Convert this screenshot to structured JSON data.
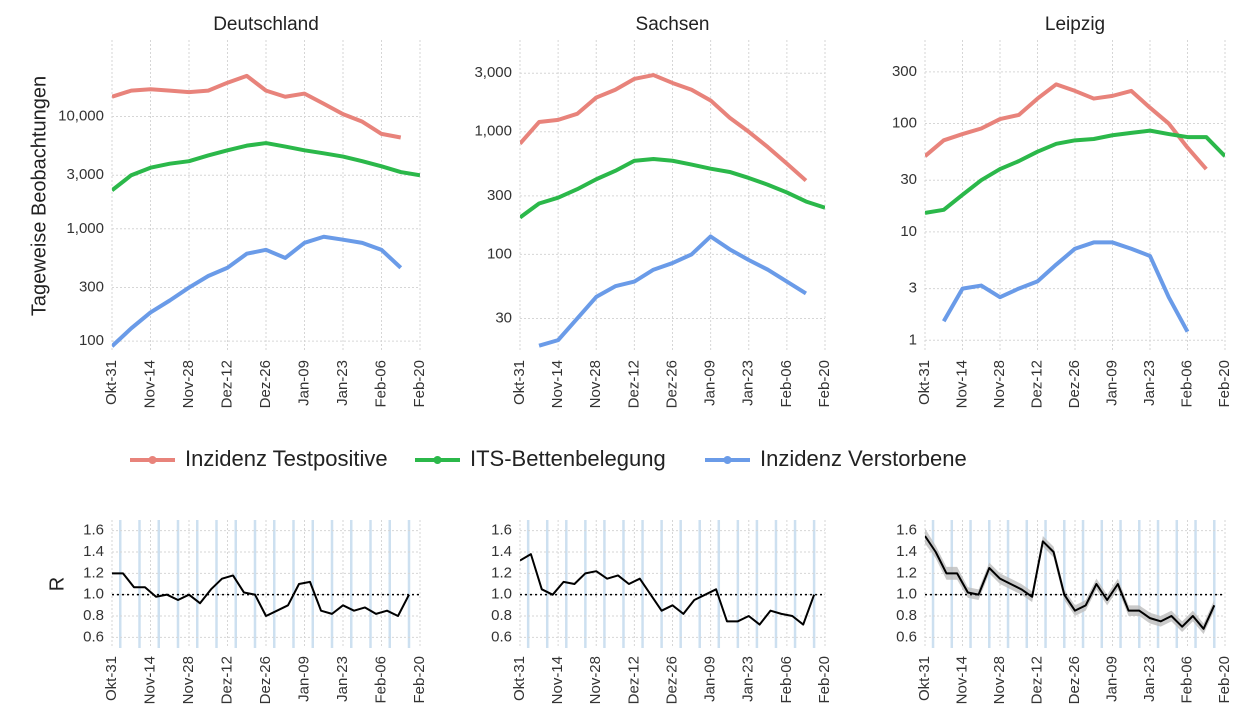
{
  "chart_data": [
    {
      "type": "line",
      "title": "Deutschland",
      "y_label": "Tageweise Beobachtungen",
      "log_y": true,
      "grid": true,
      "x": [
        0,
        7,
        14,
        21,
        28,
        35,
        42,
        49,
        56,
        63,
        70,
        77,
        84,
        91,
        98,
        105,
        112
      ],
      "xlim": [
        0,
        112
      ],
      "xticks": [
        {
          "value": 0,
          "label": "Okt-31"
        },
        {
          "value": 14,
          "label": "Nov-14"
        },
        {
          "value": 28,
          "label": "Nov-28"
        },
        {
          "value": 42,
          "label": "Dez-12"
        },
        {
          "value": 56,
          "label": "Dez-26"
        },
        {
          "value": 70,
          "label": "Jan-09"
        },
        {
          "value": 84,
          "label": "Jan-23"
        },
        {
          "value": 98,
          "label": "Feb-06"
        },
        {
          "value": 112,
          "label": "Feb-20"
        }
      ],
      "ylim": [
        80,
        48000
      ],
      "yticks": [
        100,
        300,
        {
          "value": 1000,
          "label": "1,000"
        },
        {
          "value": 3000,
          "label": "3,000"
        },
        {
          "value": 10000,
          "label": "10,000"
        }
      ],
      "series": [
        {
          "name": "Inzidenz Testpositive",
          "color": "#e8837b",
          "values": [
            15000,
            17000,
            17500,
            17000,
            16500,
            17000,
            20000,
            23000,
            17000,
            15000,
            16000,
            13000,
            10500,
            9000,
            7000,
            6500,
            null
          ]
        },
        {
          "name": "ITS-Bettenbelegung",
          "color": "#2bb84a",
          "values": [
            2200,
            3000,
            3500,
            3800,
            4000,
            4500,
            5000,
            5500,
            5800,
            5400,
            5000,
            4700,
            4400,
            4000,
            3600,
            3200,
            3000
          ]
        },
        {
          "name": "Inzidenz Verstorbene",
          "color": "#6a9be8",
          "values": [
            90,
            130,
            180,
            230,
            300,
            380,
            450,
            600,
            650,
            550,
            750,
            850,
            800,
            750,
            650,
            450,
            null
          ]
        }
      ]
    },
    {
      "type": "line",
      "title": "Sachsen",
      "log_y": true,
      "grid": true,
      "x": [
        0,
        7,
        14,
        21,
        28,
        35,
        42,
        49,
        56,
        63,
        70,
        77,
        84,
        91,
        98,
        105,
        112
      ],
      "xlim": [
        0,
        112
      ],
      "xticks": [
        {
          "value": 0,
          "label": "Okt-31"
        },
        {
          "value": 14,
          "label": "Nov-14"
        },
        {
          "value": 28,
          "label": "Nov-28"
        },
        {
          "value": 42,
          "label": "Dez-12"
        },
        {
          "value": 56,
          "label": "Dez-26"
        },
        {
          "value": 70,
          "label": "Jan-09"
        },
        {
          "value": 84,
          "label": "Jan-23"
        },
        {
          "value": 98,
          "label": "Feb-06"
        },
        {
          "value": 112,
          "label": "Feb-20"
        }
      ],
      "ylim": [
        16,
        5600
      ],
      "yticks": [
        30,
        100,
        300,
        {
          "value": 1000,
          "label": "1,000"
        },
        {
          "value": 3000,
          "label": "3,000"
        }
      ],
      "series": [
        {
          "color": "#e8837b",
          "values": [
            800,
            1200,
            1250,
            1400,
            1900,
            2200,
            2700,
            2900,
            2500,
            2200,
            1800,
            1300,
            1000,
            750,
            550,
            400,
            null
          ]
        },
        {
          "color": "#2bb84a",
          "values": [
            200,
            260,
            290,
            340,
            410,
            480,
            580,
            600,
            580,
            540,
            500,
            470,
            420,
            370,
            320,
            270,
            240
          ]
        },
        {
          "color": "#6a9be8",
          "values": [
            null,
            18,
            20,
            30,
            45,
            55,
            60,
            75,
            85,
            100,
            140,
            110,
            90,
            75,
            60,
            48,
            null
          ]
        }
      ]
    },
    {
      "type": "line",
      "title": "Leipzig",
      "log_y": true,
      "grid": true,
      "x": [
        0,
        7,
        14,
        21,
        28,
        35,
        42,
        49,
        56,
        63,
        70,
        77,
        84,
        91,
        98,
        105,
        112
      ],
      "xlim": [
        0,
        112
      ],
      "xticks": [
        {
          "value": 0,
          "label": "Okt-31"
        },
        {
          "value": 14,
          "label": "Nov-14"
        },
        {
          "value": 28,
          "label": "Nov-28"
        },
        {
          "value": 42,
          "label": "Dez-12"
        },
        {
          "value": 56,
          "label": "Dez-26"
        },
        {
          "value": 70,
          "label": "Jan-09"
        },
        {
          "value": 84,
          "label": "Jan-23"
        },
        {
          "value": 98,
          "label": "Feb-06"
        },
        {
          "value": 112,
          "label": "Feb-20"
        }
      ],
      "ylim": [
        0.78,
        590
      ],
      "yticks": [
        1,
        3,
        10,
        30,
        100,
        300
      ],
      "series": [
        {
          "color": "#e8837b",
          "values": [
            50,
            70,
            80,
            90,
            110,
            120,
            170,
            230,
            200,
            170,
            180,
            200,
            140,
            100,
            60,
            38,
            null
          ]
        },
        {
          "color": "#2bb84a",
          "values": [
            15,
            16,
            22,
            30,
            38,
            45,
            55,
            65,
            70,
            72,
            78,
            82,
            86,
            80,
            75,
            75,
            50
          ]
        },
        {
          "color": "#6a9be8",
          "values": [
            null,
            1.5,
            3,
            3.2,
            2.5,
            3,
            3.5,
            5,
            7,
            8,
            8,
            7,
            6,
            2.5,
            1.2,
            null,
            null
          ]
        }
      ]
    },
    {
      "type": "line",
      "y_label": "R",
      "grid": true,
      "reference_line": 1,
      "week_markers": true,
      "x": [
        0,
        4,
        8,
        12,
        16,
        20,
        24,
        28,
        32,
        36,
        40,
        44,
        48,
        52,
        56,
        60,
        64,
        68,
        72,
        76,
        80,
        84,
        88,
        92,
        96,
        100,
        104,
        108
      ],
      "xlim": [
        0,
        112
      ],
      "xticks": [
        {
          "value": 0,
          "label": "Okt-31"
        },
        {
          "value": 14,
          "label": "Nov-14"
        },
        {
          "value": 28,
          "label": "Nov-28"
        },
        {
          "value": 42,
          "label": "Dez-12"
        },
        {
          "value": 56,
          "label": "Dez-26"
        },
        {
          "value": 70,
          "label": "Jan-09"
        },
        {
          "value": 84,
          "label": "Jan-23"
        },
        {
          "value": 98,
          "label": "Feb-06"
        },
        {
          "value": 112,
          "label": "Feb-20"
        }
      ],
      "ylim": [
        0.5,
        1.7
      ],
      "yticks": [
        0.6,
        0.8,
        {
          "value": 1,
          "label": "1.0"
        },
        1.2,
        1.4,
        1.6
      ],
      "series": [
        {
          "color": "#000000",
          "values": [
            1.2,
            1.2,
            1.07,
            1.07,
            0.98,
            1.0,
            0.95,
            1.0,
            0.92,
            1.05,
            1.15,
            1.18,
            1.02,
            1.0,
            0.8,
            0.85,
            0.9,
            1.1,
            1.12,
            0.85,
            0.82,
            0.9,
            0.85,
            0.88,
            0.82,
            0.85,
            0.8,
            1.0
          ]
        }
      ]
    },
    {
      "type": "line",
      "grid": true,
      "reference_line": 1,
      "week_markers": true,
      "x": [
        0,
        4,
        8,
        12,
        16,
        20,
        24,
        28,
        32,
        36,
        40,
        44,
        48,
        52,
        56,
        60,
        64,
        68,
        72,
        76,
        80,
        84,
        88,
        92,
        96,
        100,
        104,
        108
      ],
      "xlim": [
        0,
        112
      ],
      "xticks": [
        {
          "value": 0,
          "label": "Okt-31"
        },
        {
          "value": 14,
          "label": "Nov-14"
        },
        {
          "value": 28,
          "label": "Nov-28"
        },
        {
          "value": 42,
          "label": "Dez-12"
        },
        {
          "value": 56,
          "label": "Dez-26"
        },
        {
          "value": 70,
          "label": "Jan-09"
        },
        {
          "value": 84,
          "label": "Jan-23"
        },
        {
          "value": 98,
          "label": "Feb-06"
        },
        {
          "value": 112,
          "label": "Feb-20"
        }
      ],
      "ylim": [
        0.5,
        1.7
      ],
      "yticks": [
        0.6,
        0.8,
        {
          "value": 1,
          "label": "1.0"
        },
        1.2,
        1.4,
        1.6
      ],
      "series": [
        {
          "color": "#000000",
          "values": [
            1.32,
            1.38,
            1.05,
            1.0,
            1.12,
            1.1,
            1.2,
            1.22,
            1.15,
            1.18,
            1.1,
            1.15,
            1.0,
            0.85,
            0.9,
            0.82,
            0.95,
            1.0,
            1.05,
            0.75,
            0.75,
            0.8,
            0.72,
            0.85,
            0.82,
            0.8,
            0.72,
            1.0
          ]
        }
      ]
    },
    {
      "type": "line",
      "grid": true,
      "reference_line": 1,
      "week_markers": true,
      "x": [
        0,
        4,
        8,
        12,
        16,
        20,
        24,
        28,
        32,
        36,
        40,
        44,
        48,
        52,
        56,
        60,
        64,
        68,
        72,
        76,
        80,
        84,
        88,
        92,
        96,
        100,
        104,
        108
      ],
      "xlim": [
        0,
        112
      ],
      "xticks": [
        {
          "value": 0,
          "label": "Okt-31"
        },
        {
          "value": 14,
          "label": "Nov-14"
        },
        {
          "value": 28,
          "label": "Nov-28"
        },
        {
          "value": 42,
          "label": "Dez-12"
        },
        {
          "value": 56,
          "label": "Dez-26"
        },
        {
          "value": 70,
          "label": "Jan-09"
        },
        {
          "value": 84,
          "label": "Jan-23"
        },
        {
          "value": 98,
          "label": "Feb-06"
        },
        {
          "value": 112,
          "label": "Feb-20"
        }
      ],
      "ylim": [
        0.5,
        1.7
      ],
      "yticks": [
        0.6,
        0.8,
        {
          "value": 1,
          "label": "1.0"
        },
        1.2,
        1.4,
        1.6
      ],
      "band": {
        "color": "#bdbdbd",
        "lower": [
          1.48,
          1.34,
          1.14,
          1.14,
          0.97,
          0.95,
          1.2,
          1.1,
          1.05,
          1.0,
          0.93,
          1.45,
          1.35,
          0.95,
          0.8,
          0.85,
          1.05,
          0.9,
          1.05,
          0.8,
          0.8,
          0.73,
          0.7,
          0.75,
          0.65,
          0.75,
          0.63,
          0.85
        ],
        "upper": [
          1.62,
          1.46,
          1.26,
          1.26,
          1.07,
          1.05,
          1.3,
          1.2,
          1.15,
          1.1,
          1.03,
          1.55,
          1.45,
          1.05,
          0.9,
          0.95,
          1.15,
          1.0,
          1.15,
          0.9,
          0.9,
          0.83,
          0.8,
          0.85,
          0.75,
          0.85,
          0.73,
          0.95
        ]
      },
      "series": [
        {
          "color": "#000000",
          "values": [
            1.55,
            1.4,
            1.2,
            1.2,
            1.02,
            1.0,
            1.25,
            1.15,
            1.1,
            1.05,
            0.98,
            1.5,
            1.4,
            1.0,
            0.85,
            0.9,
            1.1,
            0.95,
            1.1,
            0.85,
            0.85,
            0.78,
            0.75,
            0.8,
            0.7,
            0.8,
            0.68,
            0.9
          ]
        }
      ]
    }
  ]
}
